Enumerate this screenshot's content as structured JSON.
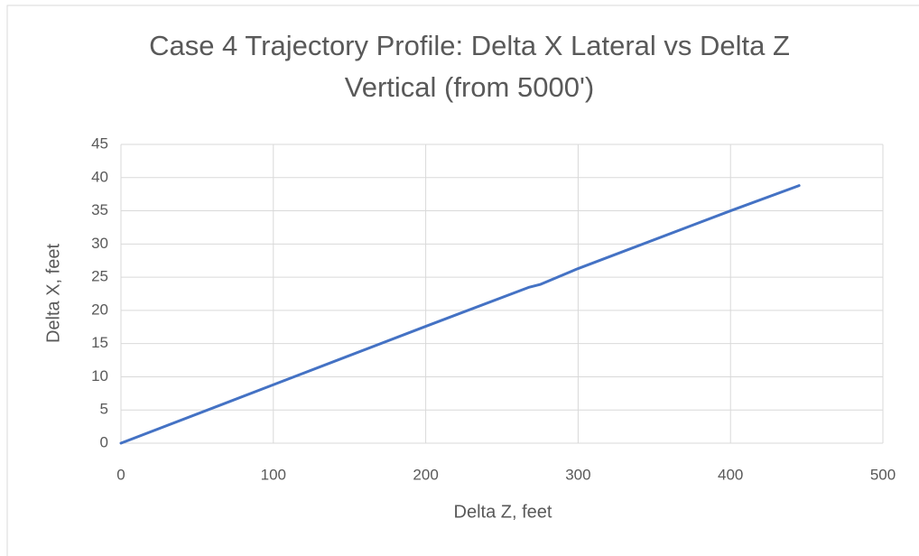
{
  "chart_data": {
    "type": "line",
    "title": "Case 4 Trajectory Profile: Delta X Lateral vs Delta Z Vertical (from 5000')",
    "x_label": "Delta Z, feet",
    "y_label": "Delta X, feet",
    "x": [
      0,
      100,
      200,
      268,
      275,
      300,
      400,
      445
    ],
    "series": [
      {
        "name": "Delta X",
        "color": "#4472c4",
        "values": [
          0,
          8.8,
          17.6,
          23.5,
          23.9,
          26.3,
          35,
          38.8
        ]
      }
    ],
    "xlim": [
      0,
      500
    ],
    "xticks": [
      0,
      100,
      200,
      300,
      400,
      500
    ],
    "ylim": [
      0,
      45
    ],
    "yticks": [
      0,
      5,
      10,
      15,
      20,
      25,
      30,
      35,
      40,
      45
    ],
    "grid": true
  }
}
